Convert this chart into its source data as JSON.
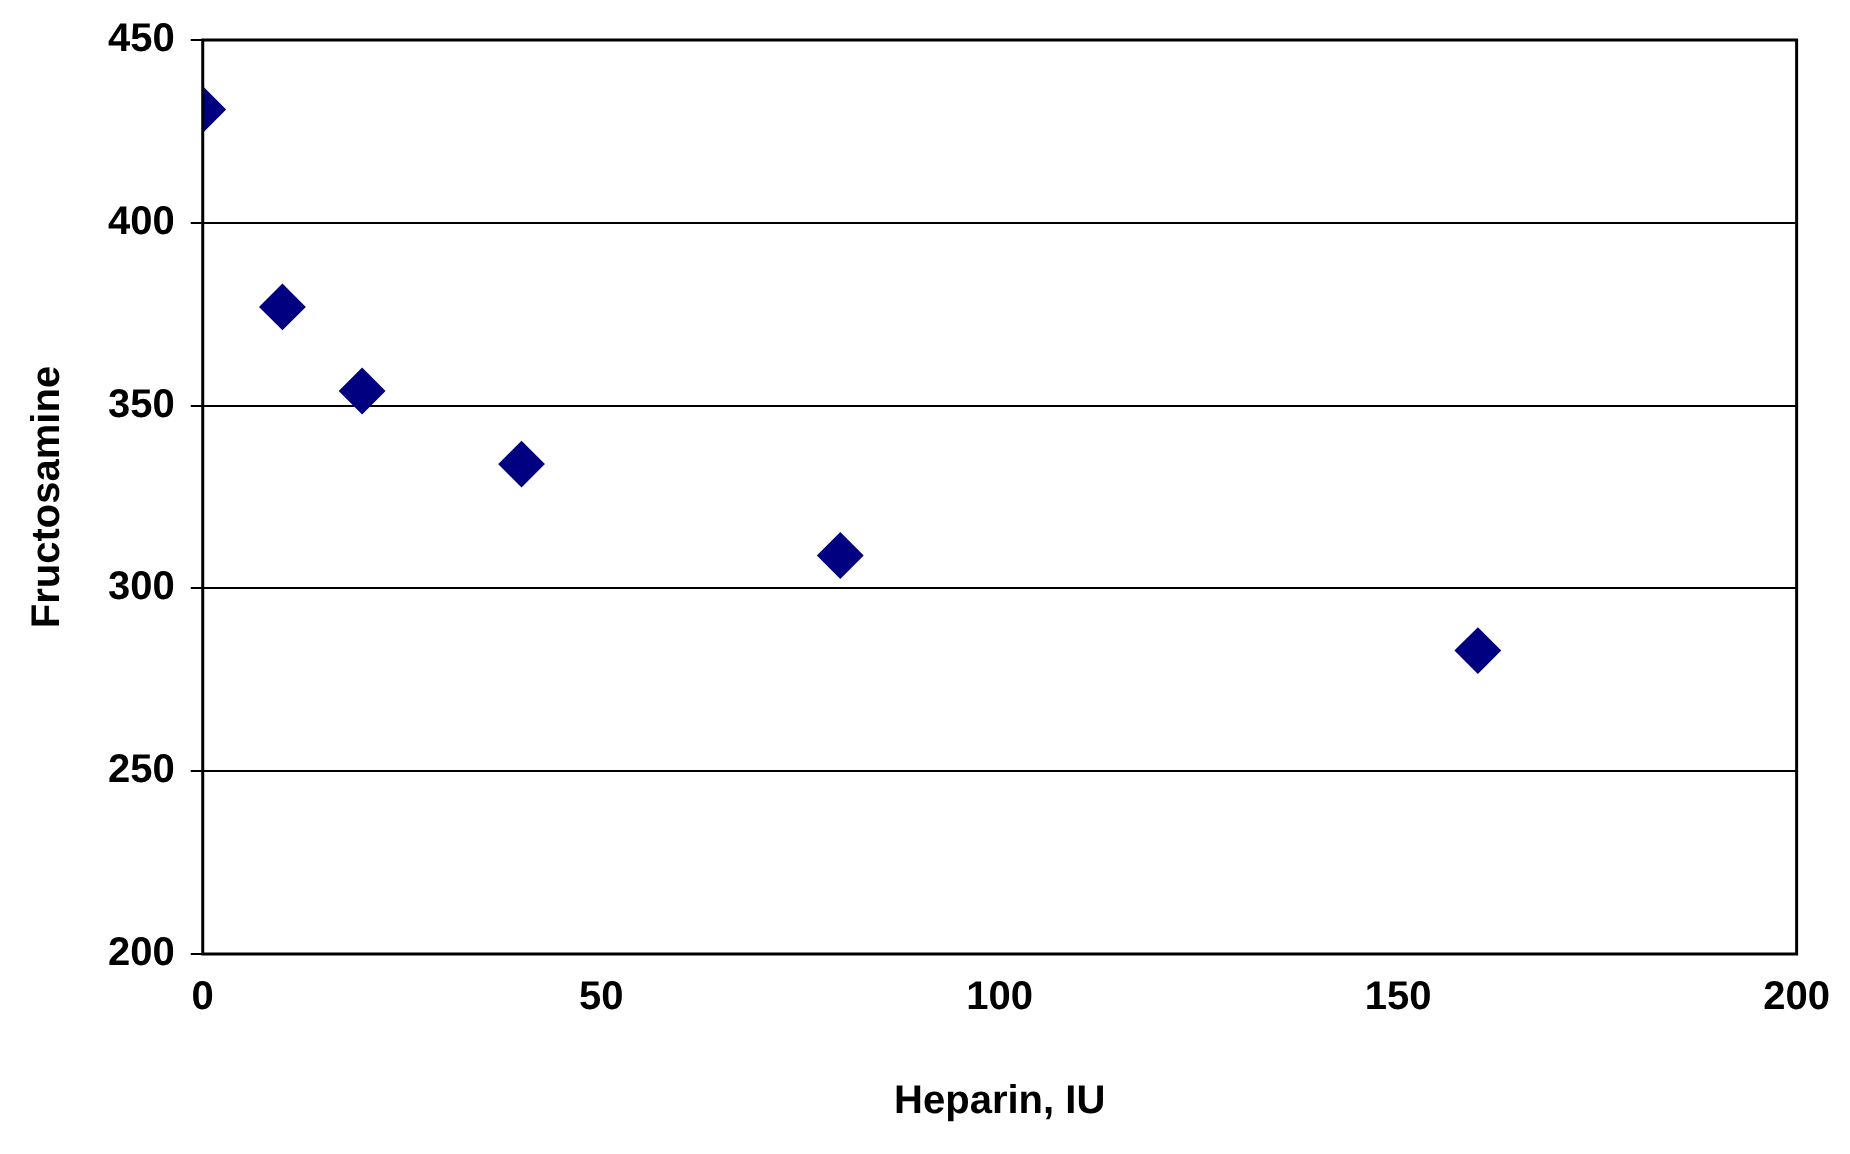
{
  "chart_data": {
    "type": "scatter",
    "xlabel": "Heparin, IU",
    "ylabel": "Fructosamine",
    "x": [
      0,
      10,
      20,
      40,
      80,
      160
    ],
    "series": [
      {
        "color": "#000080",
        "values": [
          431,
          377,
          354,
          334,
          309,
          283
        ]
      }
    ],
    "xlim": [
      0,
      200
    ],
    "xticks": [
      0,
      50,
      100,
      150,
      200
    ],
    "ylim": [
      200,
      450
    ],
    "yticks": [
      200,
      250,
      300,
      350,
      400,
      450
    ],
    "grid": "y",
    "legend": false,
    "marker": "diamond"
  }
}
